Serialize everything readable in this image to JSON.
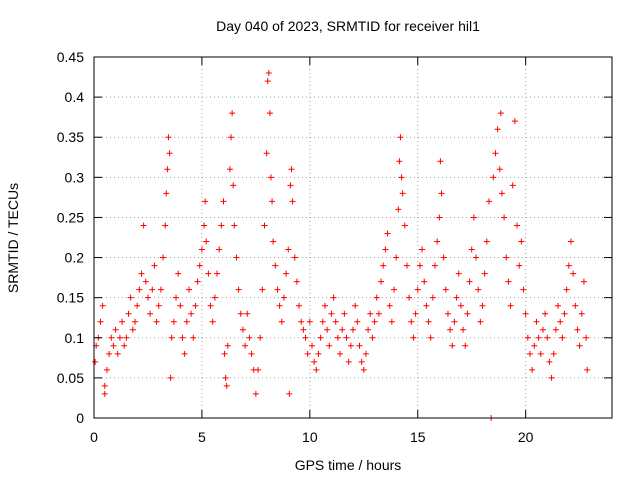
{
  "chart_data": {
    "type": "scatter",
    "title": "Day 040 of 2023, SRMTID for receiver hil1",
    "xlabel": "GPS time / hours",
    "ylabel": "SRMTID / TECUs",
    "xlim": [
      0,
      24
    ],
    "ylim": [
      0,
      0.45
    ],
    "xticks": [
      0,
      5,
      10,
      15,
      20
    ],
    "xtick_labels": [
      "0",
      "5",
      "10",
      "15",
      "20"
    ],
    "yticks": [
      0,
      0.05,
      0.1,
      0.15,
      0.2,
      0.25,
      0.3,
      0.35,
      0.4,
      0.45
    ],
    "ytick_labels": [
      "0",
      "0.05",
      "0.1",
      "0.15",
      "0.2",
      "0.25",
      "0.3",
      "0.35",
      "0.4",
      "0.45"
    ],
    "grid": true,
    "marker": "+",
    "color": "#ff0000",
    "series": [
      {
        "values": [
          [
            0.05,
            0.07
          ],
          [
            0.1,
            0.09
          ],
          [
            0.2,
            0.1
          ],
          [
            0.3,
            0.12
          ],
          [
            0.4,
            0.14
          ],
          [
            0.5,
            0.03
          ],
          [
            0.5,
            0.04
          ],
          [
            0.6,
            0.06
          ],
          [
            0.7,
            0.08
          ],
          [
            0.8,
            0.1
          ],
          [
            0.9,
            0.09
          ],
          [
            1.0,
            0.11
          ],
          [
            1.1,
            0.08
          ],
          [
            1.2,
            0.1
          ],
          [
            1.3,
            0.12
          ],
          [
            1.4,
            0.09
          ],
          [
            1.5,
            0.1
          ],
          [
            1.6,
            0.13
          ],
          [
            1.7,
            0.15
          ],
          [
            1.8,
            0.11
          ],
          [
            1.9,
            0.12
          ],
          [
            2.0,
            0.14
          ],
          [
            2.1,
            0.16
          ],
          [
            2.2,
            0.18
          ],
          [
            2.3,
            0.24
          ],
          [
            2.4,
            0.17
          ],
          [
            2.5,
            0.15
          ],
          [
            2.6,
            0.13
          ],
          [
            2.7,
            0.16
          ],
          [
            2.8,
            0.19
          ],
          [
            2.9,
            0.12
          ],
          [
            3.0,
            0.14
          ],
          [
            3.1,
            0.16
          ],
          [
            3.2,
            0.2
          ],
          [
            3.3,
            0.24
          ],
          [
            3.35,
            0.28
          ],
          [
            3.4,
            0.31
          ],
          [
            3.45,
            0.35
          ],
          [
            3.5,
            0.33
          ],
          [
            3.55,
            0.05
          ],
          [
            3.6,
            0.1
          ],
          [
            3.7,
            0.12
          ],
          [
            3.8,
            0.15
          ],
          [
            3.9,
            0.18
          ],
          [
            4.0,
            0.14
          ],
          [
            4.1,
            0.1
          ],
          [
            4.2,
            0.08
          ],
          [
            4.3,
            0.12
          ],
          [
            4.4,
            0.16
          ],
          [
            4.5,
            0.13
          ],
          [
            4.6,
            0.1
          ],
          [
            4.7,
            0.14
          ],
          [
            4.8,
            0.17
          ],
          [
            4.9,
            0.19
          ],
          [
            5.0,
            0.21
          ],
          [
            5.1,
            0.24
          ],
          [
            5.15,
            0.27
          ],
          [
            5.2,
            0.22
          ],
          [
            5.3,
            0.18
          ],
          [
            5.4,
            0.14
          ],
          [
            5.5,
            0.12
          ],
          [
            5.6,
            0.15
          ],
          [
            5.7,
            0.18
          ],
          [
            5.8,
            0.21
          ],
          [
            5.9,
            0.24
          ],
          [
            6.0,
            0.27
          ],
          [
            6.05,
            0.08
          ],
          [
            6.1,
            0.05
          ],
          [
            6.15,
            0.04
          ],
          [
            6.2,
            0.09
          ],
          [
            6.3,
            0.31
          ],
          [
            6.35,
            0.35
          ],
          [
            6.4,
            0.38
          ],
          [
            6.45,
            0.29
          ],
          [
            6.5,
            0.24
          ],
          [
            6.6,
            0.2
          ],
          [
            6.7,
            0.16
          ],
          [
            6.8,
            0.13
          ],
          [
            6.9,
            0.11
          ],
          [
            7.0,
            0.09
          ],
          [
            7.1,
            0.13
          ],
          [
            7.2,
            0.1
          ],
          [
            7.3,
            0.08
          ],
          [
            7.4,
            0.06
          ],
          [
            7.5,
            0.03
          ],
          [
            7.6,
            0.06
          ],
          [
            7.7,
            0.1
          ],
          [
            7.8,
            0.16
          ],
          [
            7.9,
            0.24
          ],
          [
            8.0,
            0.33
          ],
          [
            8.05,
            0.42
          ],
          [
            8.1,
            0.43
          ],
          [
            8.15,
            0.38
          ],
          [
            8.2,
            0.3
          ],
          [
            8.25,
            0.27
          ],
          [
            8.3,
            0.22
          ],
          [
            8.4,
            0.19
          ],
          [
            8.5,
            0.16
          ],
          [
            8.6,
            0.14
          ],
          [
            8.7,
            0.12
          ],
          [
            8.8,
            0.15
          ],
          [
            8.9,
            0.18
          ],
          [
            9.0,
            0.21
          ],
          [
            9.05,
            0.03
          ],
          [
            9.1,
            0.29
          ],
          [
            9.15,
            0.31
          ],
          [
            9.2,
            0.27
          ],
          [
            9.3,
            0.2
          ],
          [
            9.4,
            0.17
          ],
          [
            9.5,
            0.14
          ],
          [
            9.6,
            0.12
          ],
          [
            9.7,
            0.11
          ],
          [
            9.8,
            0.1
          ],
          [
            9.9,
            0.08
          ],
          [
            10.0,
            0.12
          ],
          [
            10.1,
            0.09
          ],
          [
            10.2,
            0.07
          ],
          [
            10.3,
            0.06
          ],
          [
            10.4,
            0.08
          ],
          [
            10.5,
            0.1
          ],
          [
            10.6,
            0.12
          ],
          [
            10.7,
            0.14
          ],
          [
            10.8,
            0.11
          ],
          [
            10.9,
            0.09
          ],
          [
            11.0,
            0.13
          ],
          [
            11.1,
            0.15
          ],
          [
            11.2,
            0.12
          ],
          [
            11.3,
            0.1
          ],
          [
            11.4,
            0.08
          ],
          [
            11.5,
            0.11
          ],
          [
            11.6,
            0.13
          ],
          [
            11.7,
            0.1
          ],
          [
            11.8,
            0.07
          ],
          [
            11.9,
            0.09
          ],
          [
            12.0,
            0.11
          ],
          [
            12.1,
            0.14
          ],
          [
            12.2,
            0.12
          ],
          [
            12.3,
            0.09
          ],
          [
            12.4,
            0.07
          ],
          [
            12.5,
            0.06
          ],
          [
            12.6,
            0.08
          ],
          [
            12.7,
            0.11
          ],
          [
            12.8,
            0.13
          ],
          [
            12.9,
            0.1
          ],
          [
            13.0,
            0.12
          ],
          [
            13.1,
            0.15
          ],
          [
            13.2,
            0.13
          ],
          [
            13.3,
            0.17
          ],
          [
            13.4,
            0.19
          ],
          [
            13.5,
            0.21
          ],
          [
            13.6,
            0.23
          ],
          [
            13.7,
            0.14
          ],
          [
            13.8,
            0.12
          ],
          [
            13.9,
            0.16
          ],
          [
            14.0,
            0.2
          ],
          [
            14.1,
            0.26
          ],
          [
            14.15,
            0.32
          ],
          [
            14.2,
            0.35
          ],
          [
            14.25,
            0.3
          ],
          [
            14.3,
            0.28
          ],
          [
            14.4,
            0.24
          ],
          [
            14.5,
            0.19
          ],
          [
            14.6,
            0.15
          ],
          [
            14.7,
            0.12
          ],
          [
            14.8,
            0.1
          ],
          [
            14.9,
            0.13
          ],
          [
            15.0,
            0.16
          ],
          [
            15.1,
            0.19
          ],
          [
            15.2,
            0.21
          ],
          [
            15.3,
            0.17
          ],
          [
            15.4,
            0.14
          ],
          [
            15.5,
            0.12
          ],
          [
            15.6,
            0.1
          ],
          [
            15.7,
            0.15
          ],
          [
            15.8,
            0.19
          ],
          [
            15.9,
            0.22
          ],
          [
            16.0,
            0.25
          ],
          [
            16.05,
            0.32
          ],
          [
            16.1,
            0.28
          ],
          [
            16.2,
            0.2
          ],
          [
            16.3,
            0.16
          ],
          [
            16.4,
            0.13
          ],
          [
            16.5,
            0.11
          ],
          [
            16.6,
            0.09
          ],
          [
            16.7,
            0.12
          ],
          [
            16.8,
            0.15
          ],
          [
            16.9,
            0.18
          ],
          [
            17.0,
            0.14
          ],
          [
            17.1,
            0.11
          ],
          [
            17.2,
            0.09
          ],
          [
            17.3,
            0.13
          ],
          [
            17.4,
            0.17
          ],
          [
            17.5,
            0.21
          ],
          [
            17.6,
            0.25
          ],
          [
            17.7,
            0.2
          ],
          [
            17.8,
            0.16
          ],
          [
            17.9,
            0.12
          ],
          [
            18.0,
            0.14
          ],
          [
            18.1,
            0.18
          ],
          [
            18.2,
            0.22
          ],
          [
            18.3,
            0.27
          ],
          [
            18.4,
            0.0
          ],
          [
            18.5,
            0.3
          ],
          [
            18.6,
            0.33
          ],
          [
            18.7,
            0.36
          ],
          [
            18.8,
            0.31
          ],
          [
            18.85,
            0.38
          ],
          [
            18.9,
            0.28
          ],
          [
            19.0,
            0.25
          ],
          [
            19.1,
            0.2
          ],
          [
            19.2,
            0.17
          ],
          [
            19.3,
            0.14
          ],
          [
            19.4,
            0.29
          ],
          [
            19.5,
            0.37
          ],
          [
            19.6,
            0.24
          ],
          [
            19.7,
            0.19
          ],
          [
            19.8,
            0.22
          ],
          [
            19.9,
            0.16
          ],
          [
            20.0,
            0.13
          ],
          [
            20.1,
            0.1
          ],
          [
            20.2,
            0.08
          ],
          [
            20.3,
            0.06
          ],
          [
            20.4,
            0.09
          ],
          [
            20.5,
            0.12
          ],
          [
            20.6,
            0.1
          ],
          [
            20.7,
            0.08
          ],
          [
            20.8,
            0.11
          ],
          [
            20.9,
            0.13
          ],
          [
            21.0,
            0.1
          ],
          [
            21.1,
            0.07
          ],
          [
            21.2,
            0.05
          ],
          [
            21.3,
            0.08
          ],
          [
            21.4,
            0.11
          ],
          [
            21.5,
            0.14
          ],
          [
            21.6,
            0.12
          ],
          [
            21.7,
            0.1
          ],
          [
            21.8,
            0.13
          ],
          [
            21.9,
            0.16
          ],
          [
            22.0,
            0.19
          ],
          [
            22.1,
            0.22
          ],
          [
            22.2,
            0.18
          ],
          [
            22.3,
            0.14
          ],
          [
            22.4,
            0.11
          ],
          [
            22.5,
            0.09
          ],
          [
            22.6,
            0.13
          ],
          [
            22.7,
            0.17
          ],
          [
            22.8,
            0.1
          ],
          [
            22.85,
            0.06
          ]
        ]
      }
    ]
  }
}
